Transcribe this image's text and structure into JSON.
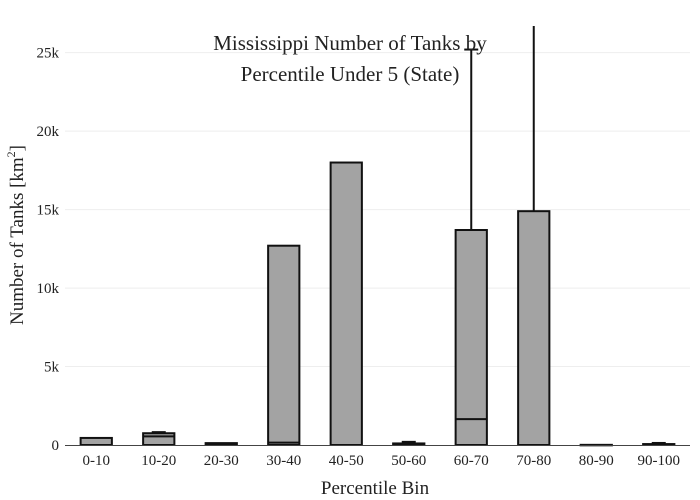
{
  "chart_data": {
    "type": "bar",
    "title_lines": [
      "Mississippi Number of Tanks by",
      "Percentile Under 5 (State)"
    ],
    "xlabel": "Percentile Bin",
    "ylabel_main": "Number of Tanks  [km",
    "ylabel_sup": "2",
    "ylabel_end": "]",
    "ylim": [
      0,
      26700
    ],
    "yticks": [
      {
        "value": 0,
        "label": "0"
      },
      {
        "value": 5000,
        "label": "5k"
      },
      {
        "value": 10000,
        "label": "10k"
      },
      {
        "value": 15000,
        "label": "15k"
      },
      {
        "value": 20000,
        "label": "20k"
      },
      {
        "value": 25000,
        "label": "25k"
      }
    ],
    "categories": [
      "0-10",
      "10-20",
      "20-30",
      "30-40",
      "40-50",
      "50-60",
      "60-70",
      "70-80",
      "80-90",
      "90-100"
    ],
    "values": [
      450,
      750,
      120,
      12700,
      18000,
      100,
      13700,
      14900,
      10,
      60
    ],
    "inner_lines": [
      [],
      [
        550
      ],
      [],
      [
        150
      ],
      [],
      [],
      [
        1650
      ],
      [],
      [],
      []
    ],
    "error_upper": [
      null,
      820,
      null,
      null,
      null,
      200,
      25200,
      26700,
      null,
      130
    ],
    "grid": true,
    "bar_color": "#a3a3a3",
    "edge_color": "#111111",
    "grid_color": "#eeeeee"
  }
}
